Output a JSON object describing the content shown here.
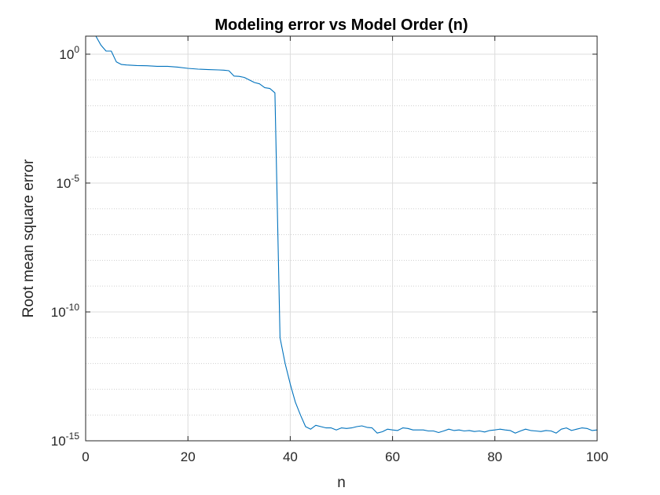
{
  "chart_data": {
    "type": "line",
    "title": "Modeling error vs Model Order (n)",
    "xlabel": "n",
    "ylabel": "Root mean square error",
    "xlim": [
      0,
      100
    ],
    "ylim_log10": [
      -15,
      0.7
    ],
    "yscale": "log",
    "grid": true,
    "x_ticks": [
      0,
      20,
      40,
      60,
      80,
      100
    ],
    "x_tick_labels": [
      "0",
      "20",
      "40",
      "60",
      "80",
      "100"
    ],
    "y_ticks_exp": [
      -15,
      -10,
      -5,
      0
    ],
    "y_tick_base": "10",
    "y_tick_exponents": [
      "-15",
      "-10",
      "-5",
      "0"
    ],
    "line_color": "#0072BD",
    "series": [
      {
        "x": [
          1,
          2,
          3,
          4,
          5,
          6,
          7,
          8,
          9,
          10,
          12,
          14,
          16,
          18,
          20,
          22,
          24,
          26,
          27,
          28,
          29,
          30,
          31,
          32,
          33,
          34,
          35,
          36,
          37,
          38,
          39,
          40,
          41,
          42,
          43,
          44,
          45,
          46,
          47,
          48,
          49,
          50,
          51,
          52,
          53,
          54,
          55,
          56,
          57,
          58,
          59,
          60,
          61,
          62,
          63,
          64,
          65,
          66,
          67,
          68,
          69,
          70,
          71,
          72,
          73,
          74,
          75,
          76,
          77,
          78,
          79,
          80,
          81,
          82,
          83,
          84,
          85,
          86,
          87,
          88,
          89,
          90,
          91,
          92,
          93,
          94,
          95,
          96,
          97,
          98,
          99,
          100
        ],
        "log10_y": [
          0.7,
          0.7,
          0.35,
          0.12,
          0.12,
          -0.3,
          -0.4,
          -0.42,
          -0.43,
          -0.44,
          -0.45,
          -0.47,
          -0.47,
          -0.5,
          -0.55,
          -0.58,
          -0.6,
          -0.61,
          -0.62,
          -0.64,
          -0.85,
          -0.86,
          -0.9,
          -1.0,
          -1.1,
          -1.15,
          -1.3,
          -1.33,
          -1.5,
          -11.0,
          -12.0,
          -12.8,
          -13.5,
          -14.0,
          -14.45,
          -14.55,
          -14.4,
          -14.45,
          -14.5,
          -14.5,
          -14.58,
          -14.5,
          -14.52,
          -14.5,
          -14.45,
          -14.42,
          -14.48,
          -14.5,
          -14.7,
          -14.65,
          -14.55,
          -14.58,
          -14.6,
          -14.5,
          -14.52,
          -14.58,
          -14.58,
          -14.58,
          -14.62,
          -14.62,
          -14.68,
          -14.62,
          -14.55,
          -14.6,
          -14.58,
          -14.62,
          -14.6,
          -14.64,
          -14.62,
          -14.66,
          -14.6,
          -14.58,
          -14.55,
          -14.58,
          -14.6,
          -14.7,
          -14.62,
          -14.55,
          -14.6,
          -14.62,
          -14.64,
          -14.6,
          -14.62,
          -14.7,
          -14.55,
          -14.5,
          -14.6,
          -14.55,
          -14.5,
          -14.52,
          -14.6,
          -14.58
        ]
      }
    ]
  }
}
